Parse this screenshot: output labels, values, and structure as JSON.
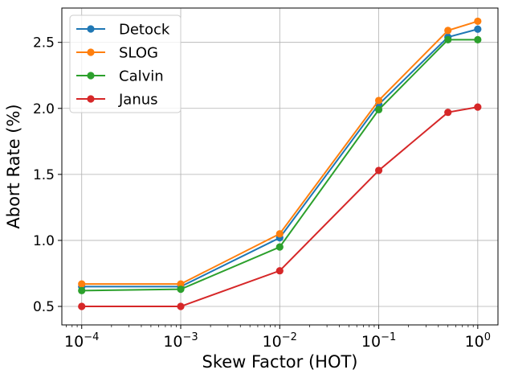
{
  "chart_data": {
    "type": "line",
    "xscale": "log",
    "xlabel": "Skew Factor (HOT)",
    "ylabel": "Abort Rate (%)",
    "xlim": [
      6.3e-05,
      1.6
    ],
    "ylim": [
      0.36,
      2.76
    ],
    "grid": true,
    "legend_position": "top-left",
    "x": [
      0.0001,
      0.001,
      0.01,
      0.1,
      0.5,
      1.0
    ],
    "x_ticks": [
      {
        "value": 0.0001,
        "base": "10",
        "exp": "−4"
      },
      {
        "value": 0.001,
        "base": "10",
        "exp": "−3"
      },
      {
        "value": 0.01,
        "base": "10",
        "exp": "−2"
      },
      {
        "value": 0.1,
        "base": "10",
        "exp": "−1"
      },
      {
        "value": 1.0,
        "base": "10",
        "exp": "0"
      }
    ],
    "y_ticks": [
      {
        "value": 0.5,
        "label": "0.5"
      },
      {
        "value": 1.0,
        "label": "1.0"
      },
      {
        "value": 1.5,
        "label": "1.5"
      },
      {
        "value": 2.0,
        "label": "2.0"
      },
      {
        "value": 2.5,
        "label": "2.5"
      }
    ],
    "series": [
      {
        "name": "Detock",
        "color": "#1f77b4",
        "values": [
          0.65,
          0.65,
          1.02,
          2.03,
          2.54,
          2.6
        ]
      },
      {
        "name": "SLOG",
        "color": "#ff7f0e",
        "values": [
          0.67,
          0.67,
          1.05,
          2.06,
          2.59,
          2.66
        ]
      },
      {
        "name": "Calvin",
        "color": "#2ca02c",
        "values": [
          0.62,
          0.63,
          0.95,
          1.99,
          2.52,
          2.52
        ]
      },
      {
        "name": "Janus",
        "color": "#d62728",
        "values": [
          0.5,
          0.5,
          0.77,
          1.53,
          1.97,
          2.01
        ]
      }
    ]
  }
}
